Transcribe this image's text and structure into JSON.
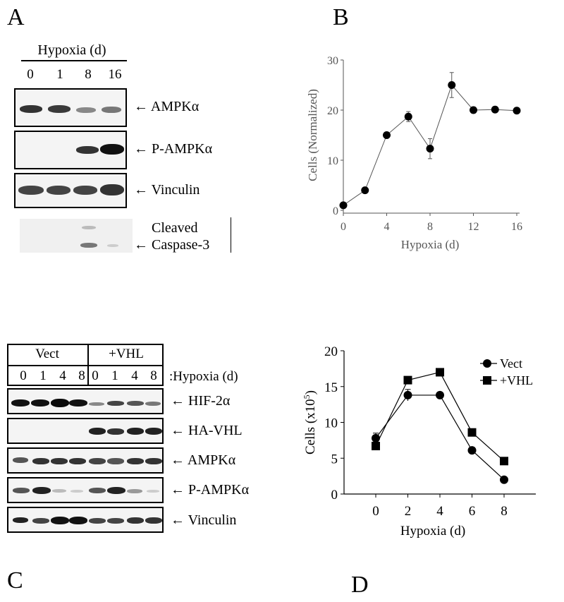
{
  "panels": {
    "a": "A",
    "b": "B",
    "c": "C",
    "d": "D"
  },
  "panel_a": {
    "header": "Hypoxia (d)",
    "lanes": [
      "0",
      "1",
      "8",
      "16"
    ],
    "blots": [
      {
        "label": "AMPKα"
      },
      {
        "label": "P-AMPKα"
      },
      {
        "label": "Vinculin"
      }
    ],
    "caspase_label_line1": "Cleaved",
    "caspase_label_line2": "Caspase-3"
  },
  "panel_c": {
    "group_vect": "Vect",
    "group_vhl": "+VHL",
    "lanes": [
      "0",
      "1",
      "4",
      "8",
      "0",
      "1",
      "4",
      "8"
    ],
    "lane_axis_label": ":Hypoxia (d)",
    "blots": [
      {
        "label": "HIF-2α"
      },
      {
        "label": "HA-VHL"
      },
      {
        "label": "AMPKα"
      },
      {
        "label": "P-AMPKα"
      },
      {
        "label": "Vinculin"
      }
    ]
  },
  "chart_data": [
    {
      "type": "line",
      "panel": "B",
      "xlabel": "Hypoxia (d)",
      "ylabel": "Cells (Normalized)",
      "xlim": [
        0,
        16
      ],
      "ylim": [
        0,
        30
      ],
      "xticks": [
        "0",
        "4",
        "8",
        "12",
        "16"
      ],
      "yticks": [
        "0",
        "10",
        "20",
        "30"
      ],
      "x": [
        0,
        2,
        4,
        6,
        8,
        10,
        12,
        14,
        16
      ],
      "series": [
        {
          "values": [
            1,
            4,
            15,
            18.7,
            12.3,
            25,
            20,
            20.1,
            19.9
          ],
          "errors": [
            0.3,
            0.3,
            0.5,
            1.0,
            2.0,
            2.5,
            0.6,
            0.5,
            0.4
          ],
          "marker": "circle",
          "color": "#000000",
          "line_color": "#555555"
        }
      ]
    },
    {
      "type": "line",
      "panel": "D",
      "xlabel": "Hypoxia (d)",
      "ylabel": "Cells (x10",
      "ylabel_sup": "5",
      "ylabel_end": ")",
      "xlim": [
        0,
        8
      ],
      "ylim": [
        0,
        20
      ],
      "xticks": [
        "0",
        "2",
        "4",
        "6",
        "8"
      ],
      "yticks": [
        "0",
        "5",
        "10",
        "15",
        "20"
      ],
      "x": [
        0,
        2,
        4,
        6,
        8
      ],
      "legend_position": "top-right",
      "series": [
        {
          "name": "Vect",
          "marker": "circle",
          "values": [
            7.8,
            13.8,
            13.8,
            6.1,
            2.0
          ],
          "errors": [
            0.7,
            0.8,
            0.3,
            0.3,
            0.2
          ]
        },
        {
          "name": "+VHL",
          "marker": "square",
          "values": [
            6.7,
            15.9,
            17.0,
            8.6,
            4.6
          ],
          "errors": [
            0.3,
            0.3,
            0.3,
            0.3,
            0.3
          ]
        }
      ]
    }
  ]
}
